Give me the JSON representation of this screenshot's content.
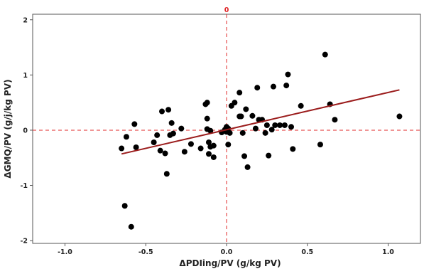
{
  "chart_data": {
    "type": "scatter",
    "title": "",
    "xlabel": "ΔPDIing/PV (g/kg PV)",
    "ylabel": "ΔGMQ/PV (g/j/kg PV)",
    "xlim": [
      -1.2,
      1.2
    ],
    "ylim": [
      -2.05,
      2.1
    ],
    "x_ticks": [
      "-1.0",
      "-0.5",
      "0.0",
      "0.5",
      "1.0"
    ],
    "x_tick_values": [
      -1.0,
      -0.5,
      0.0,
      0.5,
      1.0
    ],
    "y_ticks": [
      "-2",
      "-1",
      "0",
      "1",
      "2"
    ],
    "y_tick_values": [
      -2,
      -1,
      0,
      1,
      2
    ],
    "reference_lines": {
      "x": 0,
      "y": 0,
      "label": "0",
      "color": "#e0282a"
    },
    "regression_line": {
      "x": [
        -0.65,
        1.07
      ],
      "y": [
        -0.43,
        0.73
      ],
      "color": "#9b1c1c"
    },
    "point_color": "#000000",
    "grid": false,
    "points": [
      [
        -0.65,
        -0.33
      ],
      [
        -0.62,
        -0.12
      ],
      [
        -0.63,
        -1.37
      ],
      [
        -0.59,
        -1.75
      ],
      [
        -0.57,
        0.11
      ],
      [
        -0.56,
        -0.31
      ],
      [
        -0.45,
        -0.22
      ],
      [
        -0.43,
        -0.09
      ],
      [
        -0.41,
        -0.37
      ],
      [
        -0.4,
        0.34
      ],
      [
        -0.38,
        -0.42
      ],
      [
        -0.36,
        0.37
      ],
      [
        -0.35,
        -0.09
      ],
      [
        -0.37,
        -0.79
      ],
      [
        -0.34,
        0.13
      ],
      [
        -0.33,
        -0.06
      ],
      [
        -0.28,
        0.03
      ],
      [
        -0.26,
        -0.39
      ],
      [
        -0.22,
        -0.25
      ],
      [
        -0.16,
        -0.33
      ],
      [
        -0.13,
        0.47
      ],
      [
        -0.12,
        0.5
      ],
      [
        -0.12,
        0.02
      ],
      [
        -0.12,
        0.21
      ],
      [
        -0.1,
        -0.01
      ],
      [
        -0.11,
        -0.22
      ],
      [
        -0.1,
        -0.3
      ],
      [
        -0.11,
        -0.43
      ],
      [
        -0.08,
        -0.49
      ],
      [
        -0.08,
        -0.28
      ],
      [
        -0.03,
        -0.04
      ],
      [
        -0.01,
        0.01
      ],
      [
        0.0,
        0.06
      ],
      [
        0.0,
        -0.03
      ],
      [
        0.01,
        0.03
      ],
      [
        0.01,
        -0.26
      ],
      [
        0.02,
        -0.05
      ],
      [
        0.03,
        0.44
      ],
      [
        0.05,
        0.5
      ],
      [
        0.08,
        0.68
      ],
      [
        0.08,
        0.25
      ],
      [
        0.09,
        0.25
      ],
      [
        0.1,
        -0.05
      ],
      [
        0.11,
        -0.47
      ],
      [
        0.12,
        0.38
      ],
      [
        0.13,
        -0.67
      ],
      [
        0.16,
        0.26
      ],
      [
        0.18,
        0.03
      ],
      [
        0.19,
        0.77
      ],
      [
        0.2,
        0.19
      ],
      [
        0.22,
        0.19
      ],
      [
        0.24,
        -0.05
      ],
      [
        0.25,
        0.09
      ],
      [
        0.26,
        -0.46
      ],
      [
        0.29,
        0.79
      ],
      [
        0.28,
        0.01
      ],
      [
        0.3,
        0.09
      ],
      [
        0.33,
        0.09
      ],
      [
        0.36,
        0.09
      ],
      [
        0.37,
        0.81
      ],
      [
        0.38,
        1.01
      ],
      [
        0.4,
        0.06
      ],
      [
        0.41,
        -0.34
      ],
      [
        0.46,
        0.44
      ],
      [
        0.58,
        -0.26
      ],
      [
        0.61,
        1.37
      ],
      [
        0.64,
        0.47
      ],
      [
        0.67,
        0.19
      ],
      [
        1.07,
        0.25
      ]
    ]
  }
}
